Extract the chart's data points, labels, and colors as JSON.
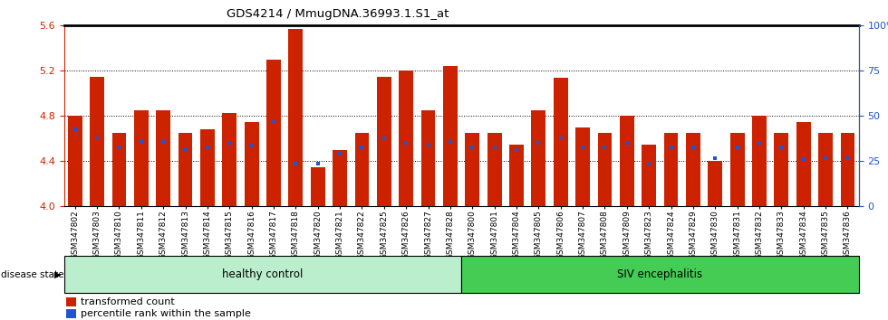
{
  "title": "GDS4214 / MmugDNA.36993.1.S1_at",
  "samples": [
    "GSM347802",
    "GSM347803",
    "GSM347810",
    "GSM347811",
    "GSM347812",
    "GSM347813",
    "GSM347814",
    "GSM347815",
    "GSM347816",
    "GSM347817",
    "GSM347818",
    "GSM347820",
    "GSM347821",
    "GSM347822",
    "GSM347825",
    "GSM347826",
    "GSM347827",
    "GSM347828",
    "GSM347800",
    "GSM347801",
    "GSM347804",
    "GSM347805",
    "GSM347806",
    "GSM347807",
    "GSM347808",
    "GSM347809",
    "GSM347823",
    "GSM347824",
    "GSM347829",
    "GSM347830",
    "GSM347831",
    "GSM347832",
    "GSM347833",
    "GSM347834",
    "GSM347835",
    "GSM347836"
  ],
  "red_values": [
    4.8,
    5.15,
    4.65,
    4.85,
    4.85,
    4.65,
    4.68,
    4.83,
    4.75,
    5.3,
    5.57,
    4.35,
    4.5,
    4.65,
    5.15,
    5.2,
    4.85,
    5.24,
    4.65,
    4.65,
    4.55,
    4.85,
    5.14,
    4.7,
    4.65,
    4.8,
    4.55,
    4.65,
    4.65,
    4.4,
    4.65,
    4.8,
    4.65,
    4.75,
    4.65,
    4.65
  ],
  "blue_values": [
    4.68,
    4.6,
    4.52,
    4.57,
    4.57,
    4.51,
    4.52,
    4.56,
    4.54,
    4.75,
    4.38,
    4.38,
    4.47,
    4.52,
    4.6,
    4.56,
    4.55,
    4.58,
    4.52,
    4.52,
    4.5,
    4.56,
    4.6,
    4.52,
    4.52,
    4.56,
    4.38,
    4.52,
    4.52,
    4.43,
    4.52,
    4.56,
    4.52,
    4.42,
    4.43,
    4.43
  ],
  "healthy_count": 18,
  "ylim_min": 4.0,
  "ylim_max": 5.6,
  "yticks_left": [
    4.0,
    4.4,
    4.8,
    5.2,
    5.6
  ],
  "yticks_right": [
    0,
    25,
    50,
    75,
    100
  ],
  "bar_color": "#cc2200",
  "dot_color": "#2255cc",
  "healthy_color": "#bbeecc",
  "siv_color": "#44cc55",
  "legend_labels": [
    "transformed count",
    "percentile rank within the sample"
  ]
}
